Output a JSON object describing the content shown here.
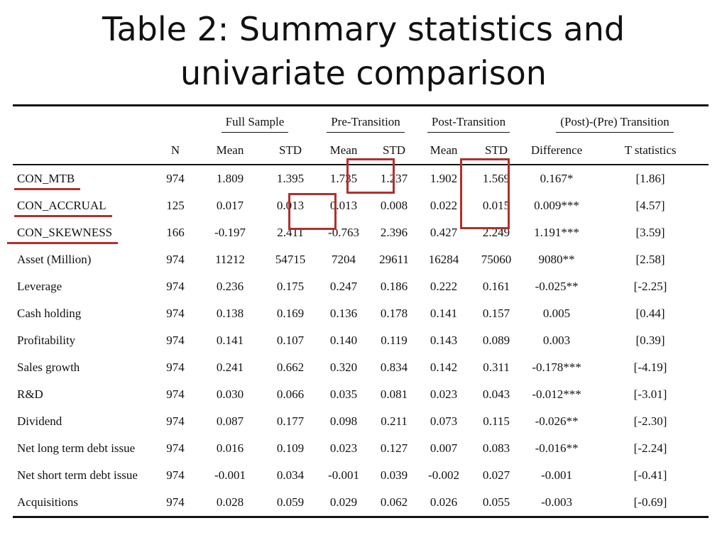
{
  "slide": {
    "title_line1": "Table 2: Summary statistics and",
    "title_line2": "univariate comparison"
  },
  "table": {
    "group_headers": {
      "full_sample": "Full Sample",
      "pre_transition": "Pre-Transition",
      "post_transition": "Post-Transition",
      "post_pre_transition": "(Post)-(Pre) Transition"
    },
    "column_headers": {
      "n": "N",
      "full_mean": "Mean",
      "full_std": "STD",
      "pre_mean": "Mean",
      "pre_std": "STD",
      "post_mean": "Mean",
      "post_std": "STD",
      "difference": "Difference",
      "t_statistics": "T statistics"
    },
    "rows": [
      {
        "variable": "CON_MTB",
        "n": "974",
        "full_mean": "1.809",
        "full_std": "1.395",
        "pre_mean": "1.735",
        "pre_std": "1.237",
        "post_mean": "1.902",
        "post_std": "1.569",
        "difference": "0.167*",
        "t_stat": "[1.86]"
      },
      {
        "variable": "CON_ACCRUAL",
        "n": "125",
        "full_mean": "0.017",
        "full_std": "0.013",
        "pre_mean": "0.013",
        "pre_std": "0.008",
        "post_mean": "0.022",
        "post_std": "0.015",
        "difference": "0.009***",
        "t_stat": "[4.57]"
      },
      {
        "variable": "CON_SKEWNESS",
        "n": "166",
        "full_mean": "-0.197",
        "full_std": "2.411",
        "pre_mean": "-0.763",
        "pre_std": "2.396",
        "post_mean": "0.427",
        "post_std": "2.249",
        "difference": "1.191***",
        "t_stat": "[3.59]"
      },
      {
        "variable": "Asset (Million)",
        "n": "974",
        "full_mean": "11212",
        "full_std": "54715",
        "pre_mean": "7204",
        "pre_std": "29611",
        "post_mean": "16284",
        "post_std": "75060",
        "difference": "9080**",
        "t_stat": "[2.58]"
      },
      {
        "variable": "Leverage",
        "n": "974",
        "full_mean": "0.236",
        "full_std": "0.175",
        "pre_mean": "0.247",
        "pre_std": "0.186",
        "post_mean": "0.222",
        "post_std": "0.161",
        "difference": "-0.025**",
        "t_stat": "[-2.25]"
      },
      {
        "variable": "Cash holding",
        "n": "974",
        "full_mean": "0.138",
        "full_std": "0.169",
        "pre_mean": "0.136",
        "pre_std": "0.178",
        "post_mean": "0.141",
        "post_std": "0.157",
        "difference": "0.005",
        "t_stat": "[0.44]"
      },
      {
        "variable": "Profitability",
        "n": "974",
        "full_mean": "0.141",
        "full_std": "0.107",
        "pre_mean": "0.140",
        "pre_std": "0.119",
        "post_mean": "0.143",
        "post_std": "0.089",
        "difference": "0.003",
        "t_stat": "[0.39]"
      },
      {
        "variable": "Sales growth",
        "n": "974",
        "full_mean": "0.241",
        "full_std": "0.662",
        "pre_mean": "0.320",
        "pre_std": "0.834",
        "post_mean": "0.142",
        "post_std": "0.311",
        "difference": "-0.178***",
        "t_stat": "[-4.19]"
      },
      {
        "variable": "R&D",
        "n": "974",
        "full_mean": "0.030",
        "full_std": "0.066",
        "pre_mean": "0.035",
        "pre_std": "0.081",
        "post_mean": "0.023",
        "post_std": "0.043",
        "difference": "-0.012***",
        "t_stat": "[-3.01]"
      },
      {
        "variable": "Dividend",
        "n": "974",
        "full_mean": "0.087",
        "full_std": "0.177",
        "pre_mean": "0.098",
        "pre_std": "0.211",
        "post_mean": "0.073",
        "post_std": "0.115",
        "difference": "-0.026**",
        "t_stat": "[-2.30]"
      },
      {
        "variable": "Net long term debt issue",
        "n": "974",
        "full_mean": "0.016",
        "full_std": "0.109",
        "pre_mean": "0.023",
        "pre_std": "0.127",
        "post_mean": "0.007",
        "post_std": "0.083",
        "difference": "-0.016**",
        "t_stat": "[-2.24]"
      },
      {
        "variable": "Net short term debt issue",
        "n": "974",
        "full_mean": "-0.001",
        "full_std": "0.034",
        "pre_mean": "-0.001",
        "pre_std": "0.039",
        "post_mean": "-0.002",
        "post_std": "0.027",
        "difference": "-0.001",
        "t_stat": "[-0.41]"
      },
      {
        "variable": "Acquisitions",
        "n": "974",
        "full_mean": "0.028",
        "full_std": "0.059",
        "pre_mean": "0.029",
        "pre_std": "0.062",
        "post_mean": "0.026",
        "post_std": "0.055",
        "difference": "-0.003",
        "t_stat": "[-0.69]"
      }
    ]
  },
  "highlight_color": "#b0302e"
}
